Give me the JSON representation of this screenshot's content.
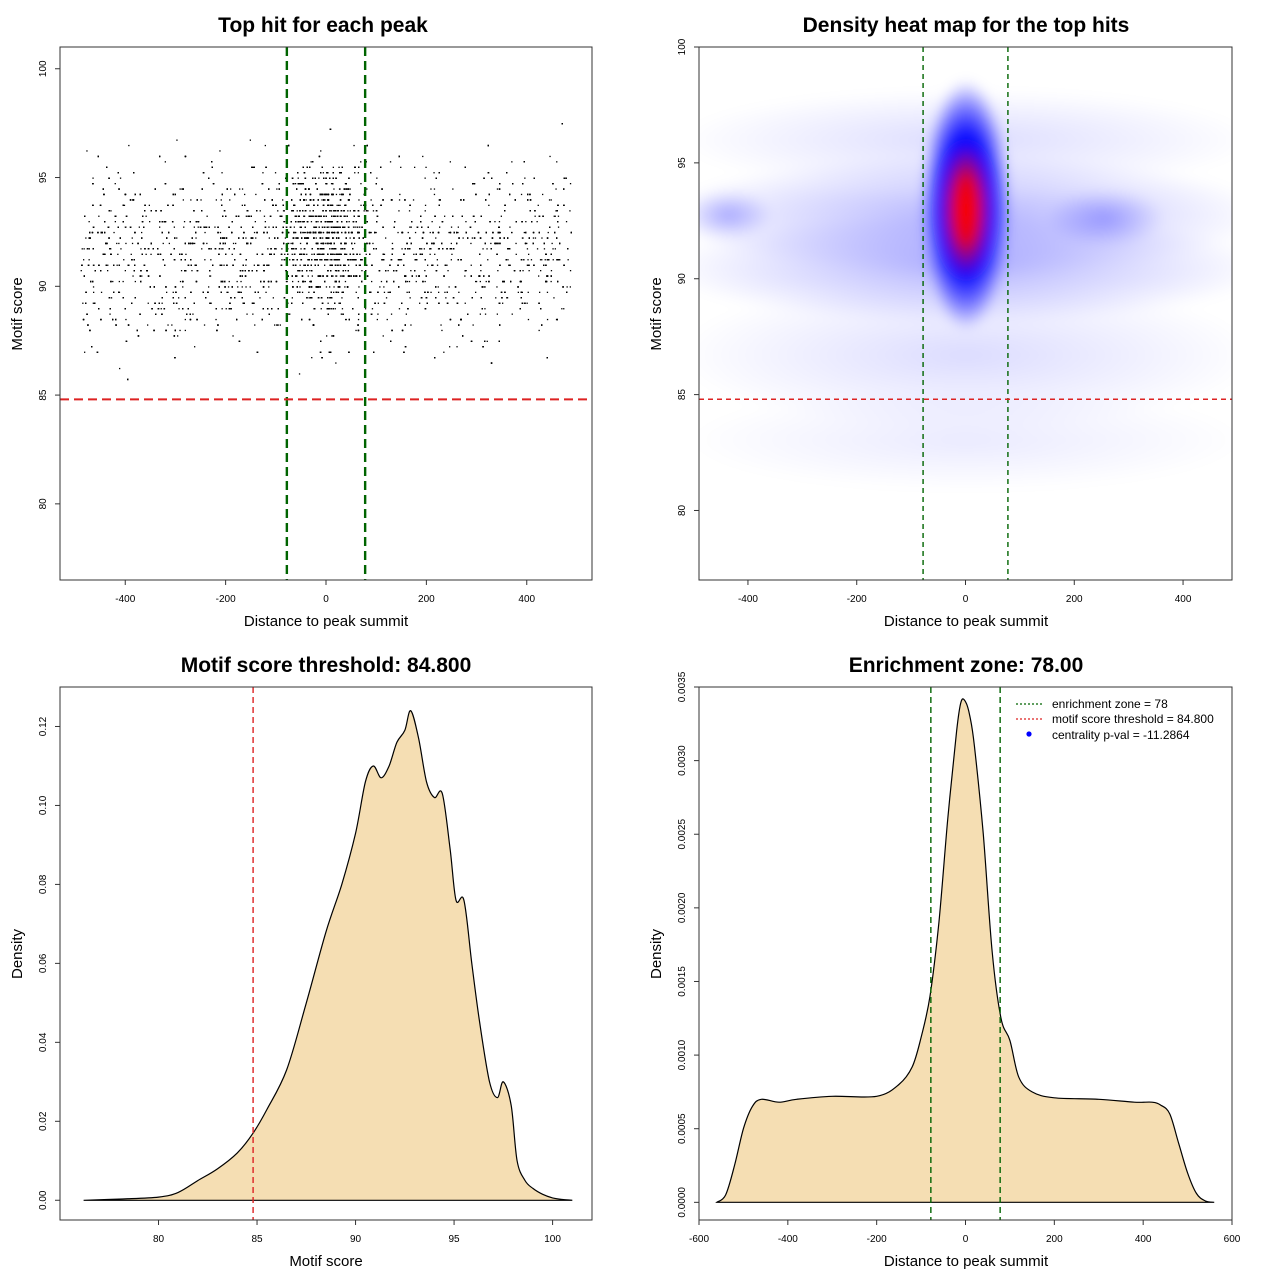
{
  "chart_data": [
    {
      "type": "scatter",
      "title": "Top hit for each peak",
      "xlabel": "Distance to peak summit",
      "ylabel": "Motif score",
      "xlim": [
        -530,
        530
      ],
      "ylim": [
        76.5,
        101
      ],
      "xticks": [
        -400,
        -200,
        0,
        200,
        400
      ],
      "yticks": [
        80,
        85,
        90,
        95,
        100
      ],
      "xtick_labels": [
        "-400",
        "-200",
        "0",
        "200",
        "400"
      ],
      "ytick_labels": [
        "80",
        "85",
        "90",
        "95",
        "100"
      ],
      "x_range_of_points": [
        -490,
        490
      ],
      "vlines": [
        -78,
        78
      ],
      "hline": 84.8,
      "vline_color": "#006400",
      "hline_color": "#dd2222",
      "point_color": "#000000",
      "description_points": "thousands of black points; dense band between scores 87 and 97 across all distances; highest density near distance 0"
    },
    {
      "type": "heatmap",
      "title": "Density heat map for the top hits",
      "xlabel": "Distance to peak summit",
      "ylabel": "Motif score",
      "xlim": [
        -490,
        490
      ],
      "ylim": [
        77,
        100
      ],
      "xticks": [
        -400,
        -200,
        0,
        200,
        400
      ],
      "yticks": [
        80,
        85,
        90,
        95,
        100
      ],
      "xtick_labels": [
        "-400",
        "-200",
        "0",
        "200",
        "400"
      ],
      "ytick_labels": [
        "80",
        "85",
        "90",
        "95",
        "100"
      ],
      "peak": {
        "x": 0,
        "y": 92.7
      },
      "colors": [
        "#ffffff",
        "#0000ff",
        "#ff0000"
      ],
      "vlines": [
        -78,
        78
      ],
      "hline": 84.8
    },
    {
      "type": "area",
      "title": "Motif score threshold: 84.800",
      "xlabel": "Motif score",
      "ylabel": "Density",
      "xlim": [
        75,
        102
      ],
      "ylim": [
        -0.005,
        0.13
      ],
      "xticks": [
        80,
        85,
        90,
        95,
        100
      ],
      "yticks": [
        0.0,
        0.02,
        0.04,
        0.06,
        0.08,
        0.1,
        0.12
      ],
      "xtick_labels": [
        "80",
        "85",
        "90",
        "95",
        "100"
      ],
      "ytick_labels": [
        "0.00",
        "0.02",
        "0.04",
        "0.06",
        "0.08",
        "0.10",
        "0.12"
      ],
      "vline": 84.8,
      "fill": "#f5deb3",
      "x": [
        76.2,
        78,
        80,
        81,
        82,
        83,
        84,
        84.8,
        85.5,
        86.5,
        87.5,
        88.5,
        89.3,
        90,
        90.5,
        90.9,
        91.3,
        91.7,
        92.1,
        92.5,
        92.8,
        93.2,
        93.6,
        94,
        94.4,
        94.8,
        95.1,
        95.5,
        95.9,
        96.3,
        96.8,
        97.2,
        97.5,
        97.9,
        98.2,
        98.6,
        99,
        99.5,
        100,
        100.5,
        101
      ],
      "y": [
        0,
        0.0003,
        0.0008,
        0.002,
        0.005,
        0.008,
        0.012,
        0.017,
        0.023,
        0.033,
        0.05,
        0.068,
        0.08,
        0.093,
        0.106,
        0.11,
        0.107,
        0.11,
        0.116,
        0.119,
        0.124,
        0.117,
        0.106,
        0.102,
        0.103,
        0.089,
        0.076,
        0.076,
        0.06,
        0.045,
        0.03,
        0.026,
        0.03,
        0.024,
        0.01,
        0.005,
        0.003,
        0.0015,
        0.0006,
        0.0002,
        0
      ]
    },
    {
      "type": "area",
      "title": "Enrichment zone: 78.00",
      "xlabel": "Distance to peak summit",
      "ylabel": "Density",
      "xlim": [
        -600,
        600
      ],
      "ylim": [
        -0.00012,
        0.0035
      ],
      "xticks": [
        -600,
        -400,
        -200,
        0,
        200,
        400,
        600
      ],
      "yticks": [
        0,
        0.0005,
        0.001,
        0.0015,
        0.002,
        0.0025,
        0.003,
        0.0035
      ],
      "xtick_labels": [
        "-600",
        "-400",
        "-200",
        "0",
        "200",
        "400",
        "600"
      ],
      "ytick_labels": [
        "0.0000",
        "0.0005",
        "0.0010",
        "0.0015",
        "0.0020",
        "0.0025",
        "0.0030",
        "0.0035"
      ],
      "vlines": [
        -78,
        78
      ],
      "fill": "#f5deb3",
      "x": [
        -560,
        -540,
        -520,
        -500,
        -480,
        -460,
        -420,
        -380,
        -300,
        -200,
        -150,
        -120,
        -100,
        -80,
        -60,
        -40,
        -20,
        -10,
        0,
        10,
        20,
        40,
        60,
        80,
        100,
        120,
        150,
        200,
        300,
        380,
        420,
        440,
        460,
        480,
        500,
        520,
        540,
        560
      ],
      "y": [
        0,
        5e-05,
        0.00025,
        0.0005,
        0.00065,
        0.0007,
        0.00068,
        0.0007,
        0.00072,
        0.00072,
        0.0008,
        0.00092,
        0.00112,
        0.0014,
        0.0019,
        0.0026,
        0.0032,
        0.0034,
        0.0034,
        0.0033,
        0.0031,
        0.0025,
        0.0017,
        0.00125,
        0.0011,
        0.00085,
        0.00075,
        0.00071,
        0.0007,
        0.00068,
        0.00068,
        0.00066,
        0.0006,
        0.0004,
        0.0002,
        6e-05,
        1e-05,
        0
      ],
      "legend": [
        {
          "label": "enrichment zone = 78",
          "color": "#006400",
          "style": "dotted-line"
        },
        {
          "label": "motif score threshold = 84.800",
          "color": "#dd2222",
          "style": "dotted-line"
        },
        {
          "label": "centrality p-val = -11.2864",
          "color": "#0000ff",
          "style": "point"
        }
      ]
    }
  ]
}
